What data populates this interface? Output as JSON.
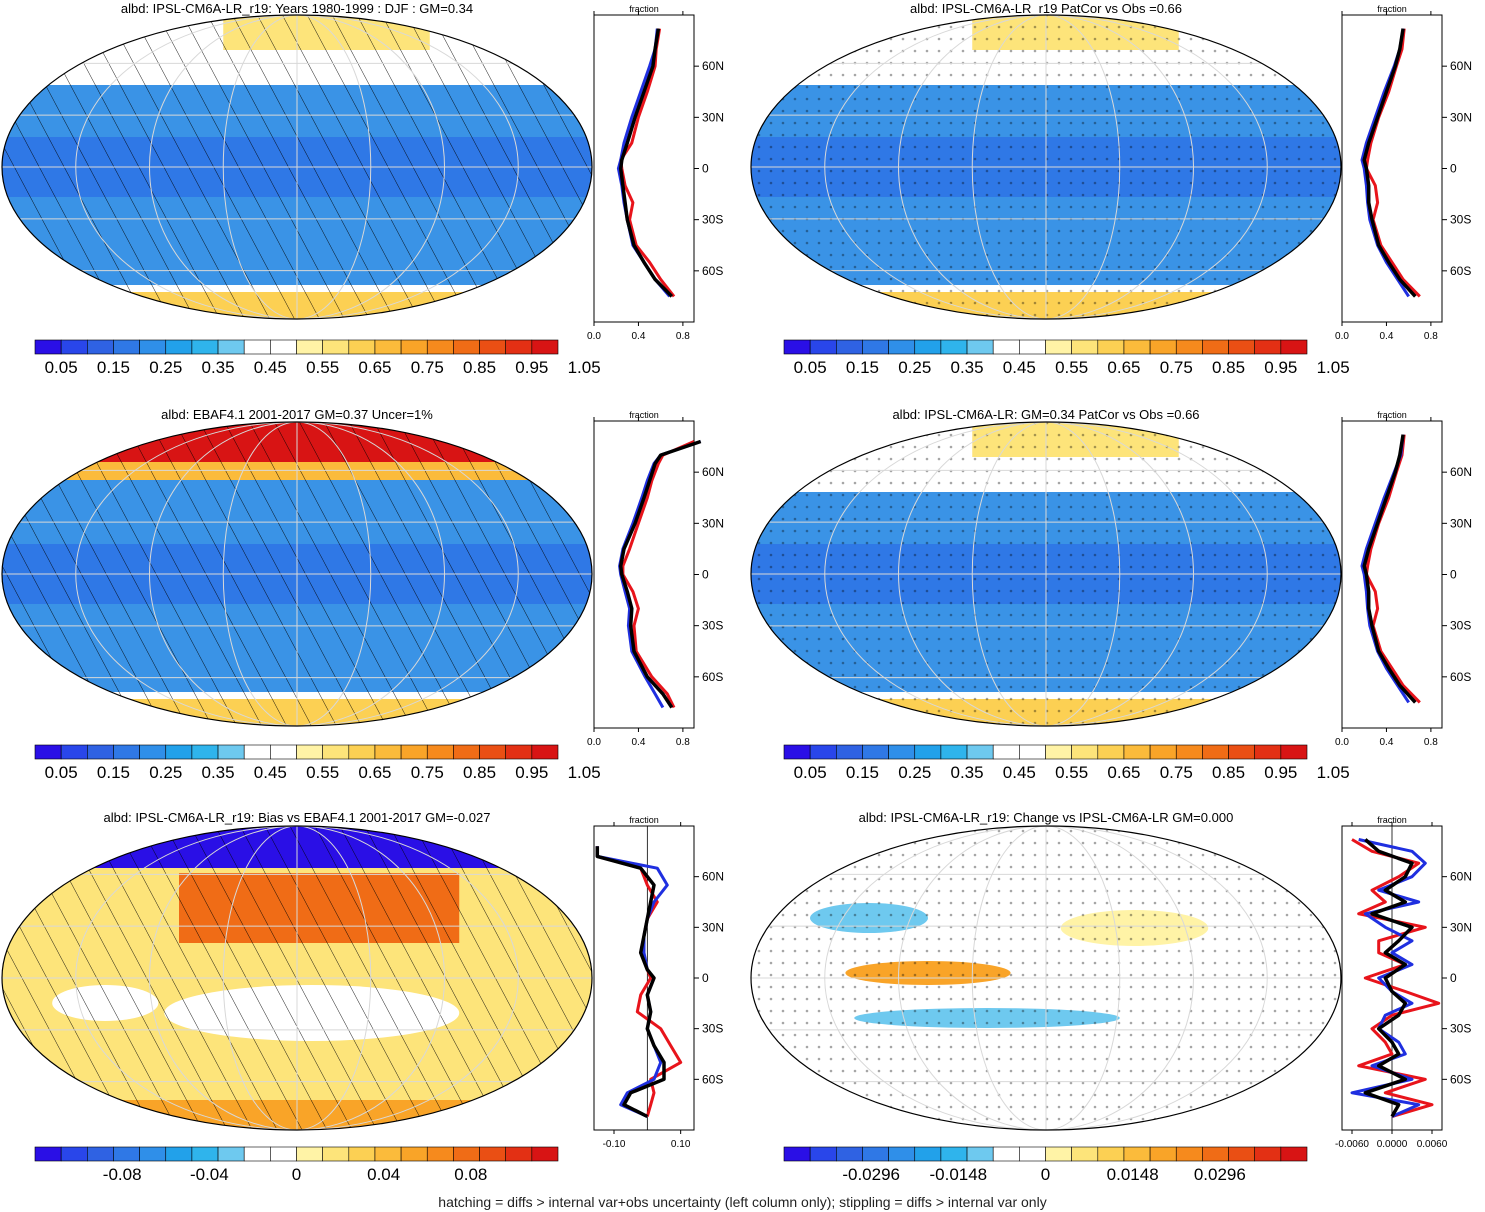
{
  "footnote": "hatching = diffs > internal var+obs uncertainty (left column only); stippling = diffs > internal var only",
  "lat_labels": [
    "60N",
    "30N",
    "0",
    "30S",
    "60S"
  ],
  "profile_header": "fraction",
  "series_colors": {
    "red": "#e8141b",
    "blue": "#1f2fe0",
    "black": "#000000"
  },
  "palettes": {
    "absolute": [
      "#2a0fe6",
      "#2946ea",
      "#2f62e3",
      "#2f78e6",
      "#2f8fe9",
      "#22a1ea",
      "#2fb4ec",
      "#6ec9ef",
      "#ffffff",
      "#ffffff",
      "#fff3a6",
      "#fde47a",
      "#fcd053",
      "#fbbb3b",
      "#f9a428",
      "#f68a1d",
      "#f06c16",
      "#ea4f14",
      "#e33014",
      "#d81414"
    ],
    "difference": [
      "#2a0fe6",
      "#2946ea",
      "#2f62e3",
      "#2f78e6",
      "#2f8fe9",
      "#22a1ea",
      "#2fb4ec",
      "#6ec9ef",
      "#ffffff",
      "#ffffff",
      "#fff3a6",
      "#fde47a",
      "#fcd053",
      "#fbbb3b",
      "#f9a428",
      "#f68a1d",
      "#f06c16",
      "#ea4f14",
      "#e33014",
      "#d81414"
    ]
  },
  "panels": [
    {
      "id": "p1",
      "title": "albd: IPSL-CM6A-LR_r19: Years 1980-1999 : DJF : GM=0.34",
      "map_scheme": "absolute",
      "overlay": "hatch",
      "colorbar_ticks": [
        "0.05",
        "0.15",
        "0.25",
        "0.35",
        "0.45",
        "0.55",
        "0.65",
        "0.75",
        "0.85",
        "0.95",
        "1.05"
      ],
      "profile_xticks": [
        "0.0",
        "0.4",
        "0.8"
      ],
      "profile_xlim": [
        0,
        0.9
      ]
    },
    {
      "id": "p2",
      "title": "albd: IPSL-CM6A-LR_r19 PatCor vs Obs =0.66",
      "map_scheme": "absolute",
      "overlay": "stipple",
      "colorbar_ticks": [
        "0.05",
        "0.15",
        "0.25",
        "0.35",
        "0.45",
        "0.55",
        "0.65",
        "0.75",
        "0.85",
        "0.95",
        "1.05"
      ],
      "profile_xticks": [
        "0.0",
        "0.4",
        "0.8"
      ],
      "profile_xlim": [
        0,
        0.9
      ]
    },
    {
      "id": "p3",
      "title": "albd: EBAF4.1 2001-2017 GM=0.37 Uncer=1%",
      "map_scheme": "absolute",
      "overlay": "hatch",
      "colorbar_ticks": [
        "0.05",
        "0.15",
        "0.25",
        "0.35",
        "0.45",
        "0.55",
        "0.65",
        "0.75",
        "0.85",
        "0.95",
        "1.05"
      ],
      "profile_xticks": [
        "0.0",
        "0.4",
        "0.8"
      ],
      "profile_xlim": [
        0,
        0.9
      ]
    },
    {
      "id": "p4",
      "title": "albd: IPSL-CM6A-LR: GM=0.34 PatCor vs Obs =0.66",
      "map_scheme": "absolute",
      "overlay": "stipple",
      "colorbar_ticks": [
        "0.05",
        "0.15",
        "0.25",
        "0.35",
        "0.45",
        "0.55",
        "0.65",
        "0.75",
        "0.85",
        "0.95",
        "1.05"
      ],
      "profile_xticks": [
        "0.0",
        "0.4",
        "0.8"
      ],
      "profile_xlim": [
        0,
        0.9
      ]
    },
    {
      "id": "p5",
      "title": "albd: IPSL-CM6A-LR_r19: Bias vs EBAF4.1 2001-2017 GM=-0.027",
      "map_scheme": "difference",
      "overlay": "hatch",
      "colorbar_ticks": [
        "-0.08",
        "-0.04",
        "0",
        "0.04",
        "0.08"
      ],
      "profile_xticks": [
        "-0.10",
        "0.10"
      ],
      "profile_xlim": [
        -0.16,
        0.14
      ]
    },
    {
      "id": "p6",
      "title": "albd: IPSL-CM6A-LR_r19: Change vs IPSL-CM6A-LR GM=0.000",
      "map_scheme": "difference",
      "overlay": "stipple",
      "colorbar_ticks": [
        "-0.0296",
        "-0.0148",
        "0",
        "0.0148",
        "0.0296"
      ],
      "profile_xticks": [
        "-0.0060",
        "0.0000",
        "0.0060"
      ],
      "profile_xlim": [
        -0.0075,
        0.0075
      ]
    }
  ],
  "chart_data": [
    {
      "type": "line",
      "panel": "p1",
      "title": "fraction",
      "ylim": [
        -90,
        90
      ],
      "xlim": [
        0,
        0.9
      ],
      "y": [
        82,
        70,
        60,
        45,
        30,
        15,
        5,
        0,
        -10,
        -20,
        -30,
        -45,
        -55,
        -65,
        -75
      ],
      "series": [
        {
          "color": "black",
          "x": [
            0.58,
            0.55,
            0.53,
            0.45,
            0.37,
            0.3,
            0.25,
            0.24,
            0.26,
            0.28,
            0.3,
            0.36,
            0.45,
            0.55,
            0.7
          ]
        },
        {
          "color": "blue",
          "x": [
            0.57,
            0.55,
            0.5,
            0.42,
            0.34,
            0.27,
            0.24,
            0.22,
            0.25,
            0.27,
            0.3,
            0.35,
            0.45,
            0.55,
            0.68
          ]
        },
        {
          "color": "red",
          "x": [
            0.59,
            0.56,
            0.55,
            0.48,
            0.4,
            0.34,
            0.24,
            0.25,
            0.28,
            0.35,
            0.32,
            0.38,
            0.5,
            0.6,
            0.72
          ]
        }
      ]
    },
    {
      "type": "line",
      "panel": "p2",
      "title": "fraction",
      "ylim": [
        -90,
        90
      ],
      "xlim": [
        0,
        0.9
      ],
      "y": [
        82,
        70,
        60,
        45,
        30,
        15,
        5,
        0,
        -10,
        -20,
        -30,
        -45,
        -55,
        -65,
        -75
      ],
      "series": [
        {
          "color": "black",
          "x": [
            0.55,
            0.52,
            0.48,
            0.4,
            0.32,
            0.24,
            0.2,
            0.22,
            0.24,
            0.24,
            0.27,
            0.33,
            0.42,
            0.52,
            0.66
          ]
        },
        {
          "color": "blue",
          "x": [
            0.55,
            0.52,
            0.47,
            0.38,
            0.3,
            0.22,
            0.18,
            0.2,
            0.22,
            0.23,
            0.25,
            0.32,
            0.4,
            0.5,
            0.6
          ]
        },
        {
          "color": "red",
          "x": [
            0.56,
            0.54,
            0.49,
            0.42,
            0.33,
            0.26,
            0.23,
            0.22,
            0.3,
            0.32,
            0.28,
            0.35,
            0.45,
            0.55,
            0.7
          ]
        }
      ]
    },
    {
      "type": "line",
      "panel": "p3",
      "title": "fraction",
      "ylim": [
        -90,
        90
      ],
      "xlim": [
        0,
        0.9
      ],
      "y": [
        78,
        70,
        65,
        55,
        45,
        30,
        15,
        5,
        0,
        -10,
        -20,
        -30,
        -45,
        -60,
        -70,
        -78
      ],
      "series": [
        {
          "color": "black",
          "x": [
            0.96,
            0.6,
            0.55,
            0.5,
            0.45,
            0.37,
            0.27,
            0.24,
            0.25,
            0.3,
            0.34,
            0.33,
            0.36,
            0.48,
            0.62,
            0.7
          ]
        },
        {
          "color": "blue",
          "x": [
            0.96,
            0.6,
            0.54,
            0.48,
            0.43,
            0.35,
            0.26,
            0.23,
            0.24,
            0.28,
            0.32,
            0.31,
            0.34,
            0.46,
            0.55,
            0.62
          ]
        },
        {
          "color": "red",
          "x": [
            0.9,
            0.62,
            0.58,
            0.52,
            0.48,
            0.4,
            0.32,
            0.26,
            0.26,
            0.35,
            0.4,
            0.36,
            0.38,
            0.52,
            0.66,
            0.72
          ]
        }
      ]
    },
    {
      "type": "line",
      "panel": "p4",
      "title": "fraction",
      "ylim": [
        -90,
        90
      ],
      "xlim": [
        0,
        0.9
      ],
      "y": [
        82,
        70,
        60,
        45,
        30,
        15,
        5,
        0,
        -10,
        -20,
        -30,
        -45,
        -55,
        -65,
        -75
      ],
      "series": [
        {
          "color": "black",
          "x": [
            0.55,
            0.52,
            0.48,
            0.4,
            0.32,
            0.24,
            0.2,
            0.22,
            0.24,
            0.24,
            0.27,
            0.33,
            0.42,
            0.52,
            0.66
          ]
        },
        {
          "color": "blue",
          "x": [
            0.55,
            0.53,
            0.47,
            0.38,
            0.3,
            0.22,
            0.18,
            0.2,
            0.22,
            0.23,
            0.25,
            0.32,
            0.4,
            0.5,
            0.6
          ]
        },
        {
          "color": "red",
          "x": [
            0.56,
            0.54,
            0.49,
            0.42,
            0.33,
            0.26,
            0.23,
            0.22,
            0.3,
            0.32,
            0.28,
            0.35,
            0.45,
            0.55,
            0.7
          ]
        }
      ]
    },
    {
      "type": "line",
      "panel": "p5",
      "title": "fraction",
      "ylim": [
        -90,
        90
      ],
      "xlim": [
        -0.16,
        0.14
      ],
      "y": [
        78,
        72,
        65,
        55,
        45,
        35,
        25,
        15,
        5,
        0,
        -10,
        -20,
        -30,
        -40,
        -50,
        -60,
        -68,
        -75,
        -82
      ],
      "series": [
        {
          "color": "black",
          "x": [
            -0.15,
            -0.15,
            -0.02,
            0.02,
            0.01,
            0.0,
            -0.01,
            -0.02,
            0.0,
            0.02,
            0.0,
            0.01,
            0.0,
            0.02,
            0.05,
            0.05,
            -0.05,
            -0.07,
            0.0
          ]
        },
        {
          "color": "blue",
          "x": [
            -0.15,
            -0.15,
            0.03,
            0.06,
            0.02,
            0.0,
            -0.01,
            -0.01,
            0.0,
            0.02,
            0.0,
            0.01,
            0.0,
            0.02,
            0.04,
            0.02,
            -0.06,
            -0.08,
            0.0
          ]
        },
        {
          "color": "red",
          "x": [
            -0.15,
            -0.15,
            -0.02,
            0.0,
            0.03,
            0.0,
            -0.01,
            -0.02,
            0.0,
            0.01,
            -0.02,
            -0.03,
            0.04,
            0.07,
            0.1,
            0.01,
            0.02,
            0.01,
            0.0
          ]
        }
      ]
    },
    {
      "type": "line",
      "panel": "p6",
      "title": "fraction",
      "ylim": [
        -90,
        90
      ],
      "xlim": [
        -0.0075,
        0.0075
      ],
      "y": [
        82,
        75,
        68,
        60,
        52,
        45,
        38,
        30,
        22,
        15,
        8,
        0,
        -8,
        -15,
        -22,
        -30,
        -38,
        -45,
        -52,
        -60,
        -68,
        -75,
        -82
      ],
      "series": [
        {
          "color": "black",
          "x": [
            -0.004,
            -0.002,
            0.003,
            0.002,
            -0.001,
            0.002,
            -0.003,
            0.003,
            0.001,
            -0.001,
            0.002,
            -0.001,
            0.0,
            0.002,
            0.001,
            -0.002,
            0.0,
            0.001,
            -0.002,
            0.002,
            -0.004,
            0.001,
            0.0
          ]
        },
        {
          "color": "blue",
          "x": [
            -0.005,
            0.003,
            0.005,
            0.003,
            -0.002,
            0.004,
            -0.004,
            -0.001,
            0.003,
            0.0,
            0.003,
            -0.002,
            0.0,
            0.003,
            -0.001,
            -0.002,
            0.001,
            0.002,
            -0.003,
            0.003,
            -0.006,
            0.004,
            0.0
          ]
        },
        {
          "color": "red",
          "x": [
            -0.006,
            -0.003,
            0.004,
            0.001,
            -0.003,
            -0.001,
            -0.005,
            0.005,
            -0.002,
            -0.002,
            0.002,
            -0.004,
            0.002,
            0.007,
            0.0,
            -0.003,
            -0.001,
            0.0,
            -0.005,
            0.005,
            -0.001,
            0.006,
            0.0
          ]
        }
      ]
    }
  ]
}
